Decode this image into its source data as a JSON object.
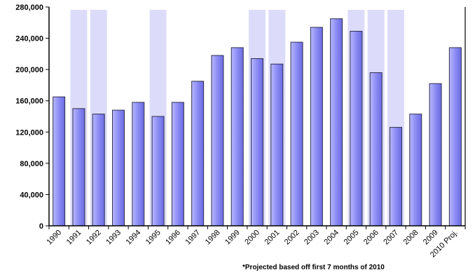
{
  "chart_data": {
    "type": "bar",
    "categories": [
      "1990",
      "1991",
      "1992",
      "1993",
      "1994",
      "1995",
      "1996",
      "1997",
      "1998",
      "1999",
      "2000",
      "2001",
      "2002",
      "2003",
      "2004",
      "2005",
      "2006",
      "2007",
      "2008",
      "2009",
      "2010 Proj."
    ],
    "values": [
      165000,
      150000,
      143000,
      148000,
      158000,
      140000,
      158000,
      185000,
      218000,
      228000,
      214000,
      207000,
      235000,
      254000,
      265000,
      249000,
      196000,
      126000,
      143000,
      182000,
      228000
    ],
    "shaded_periods": [
      "1991",
      "1992",
      "1995",
      "2000",
      "2001",
      "2005",
      "2006",
      "2007"
    ],
    "ylim": [
      0,
      280000
    ],
    "yticks": [
      "0",
      "40,000",
      "80,000",
      "120,000",
      "160,000",
      "200,000",
      "240,000",
      "280,000"
    ],
    "ytick_values": [
      0,
      40000,
      80000,
      120000,
      160000,
      200000,
      240000,
      280000
    ],
    "grid": false,
    "title": "",
    "xlabel": "",
    "ylabel": "",
    "colors": {
      "bar": "#8080f0",
      "bar_edge": "#303050",
      "shade": "#dcdcfa"
    }
  },
  "footnote": "*Projected based off first 7 months of 2010"
}
